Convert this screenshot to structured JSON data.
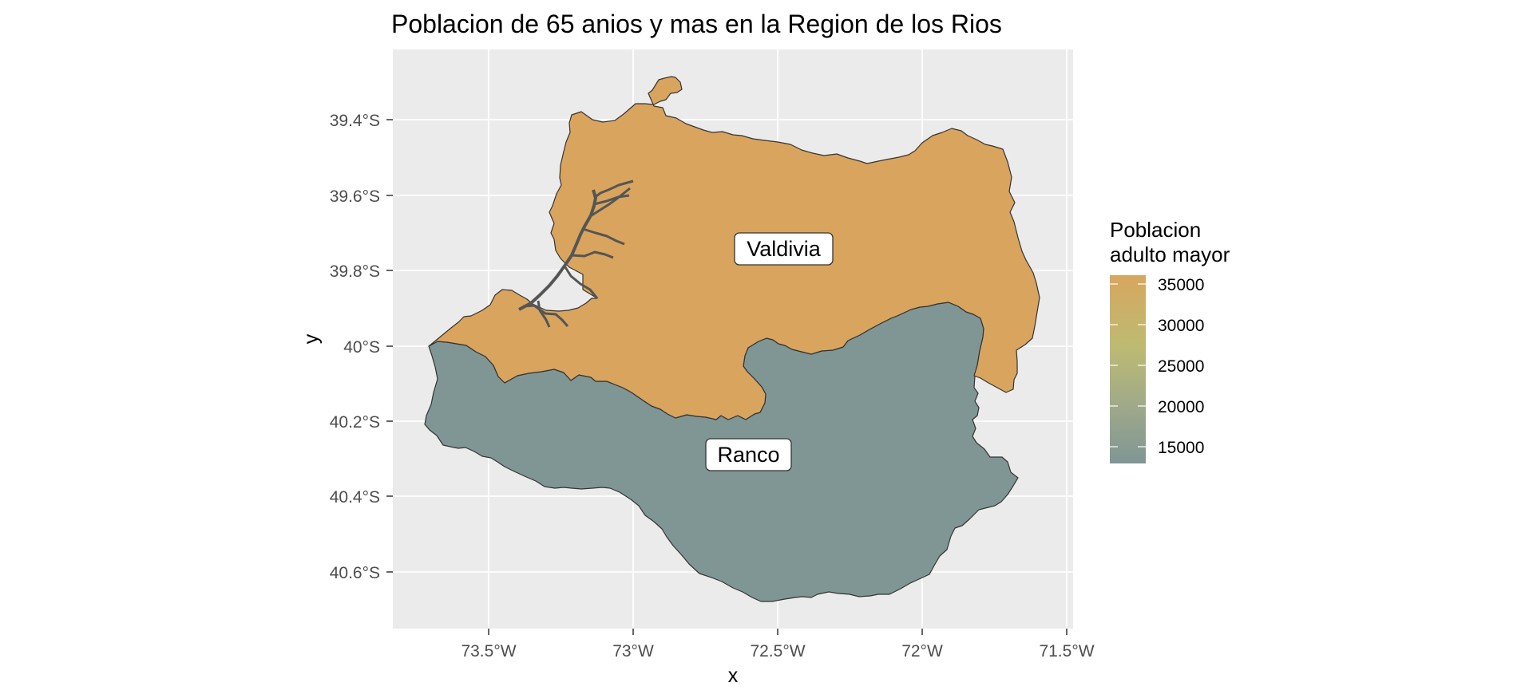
{
  "title": "Poblacion de 65 anios y mas en la Region de los Rios",
  "x_axis": {
    "title": "x",
    "ticks": [
      "73.5°W",
      "73°W",
      "72.5°W",
      "72°W",
      "71.5°W"
    ]
  },
  "y_axis": {
    "title": "y",
    "ticks": [
      "39.4°S",
      "39.6°S",
      "39.8°S",
      "40°S",
      "40.2°S",
      "40.4°S",
      "40.6°S"
    ]
  },
  "legend": {
    "title_line1": "Poblacion",
    "title_line2": "adulto mayor",
    "labels": [
      "35000",
      "30000",
      "25000",
      "20000",
      "15000"
    ],
    "colors": {
      "low": "#7f9694",
      "mid_low": "#9fa98a",
      "mid": "#bdbb72",
      "high": "#d8a65f"
    }
  },
  "regions": [
    {
      "name": "Valdivia",
      "fill": "#d9a45e"
    },
    {
      "name": "Ranco",
      "fill": "#7f9694"
    }
  ],
  "chart_data": {
    "type": "choropleth map",
    "title": "Poblacion de 65 anios y mas en la Region de los Rios",
    "xlabel": "x",
    "ylabel": "y",
    "xlim": [
      -73.8,
      -71.48
    ],
    "ylim": [
      -40.74,
      -39.2
    ],
    "grid": true,
    "legend_position": "right",
    "scale": {
      "name": "Poblacion adulto mayor",
      "breaks": [
        35000,
        30000,
        25000,
        20000,
        15000
      ]
    }
  }
}
